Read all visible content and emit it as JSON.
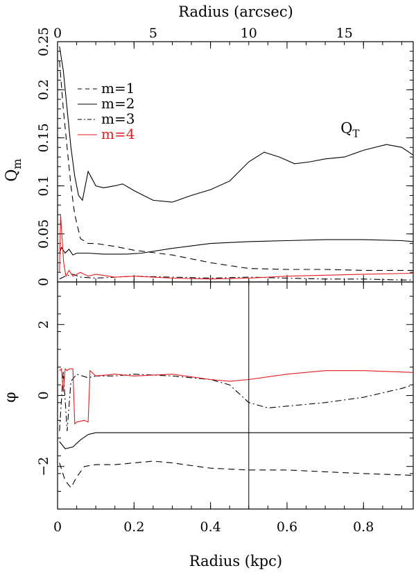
{
  "chart_data": [
    {
      "id": "top",
      "type": "line",
      "title": "",
      "xlabel": "Radius (kpc)",
      "x2label": "Radius (arcsec)",
      "ylabel_main": "Q",
      "ylabel_sub": "m",
      "xlim": [
        0,
        0.93
      ],
      "ylim": [
        0,
        0.25
      ],
      "x_ticks": [
        "0",
        "0.2",
        "0.4",
        "0.6",
        "0.8"
      ],
      "x_tick_values": [
        0,
        0.2,
        0.4,
        0.6,
        0.8
      ],
      "x2_ticks": [
        "0",
        "5",
        "10",
        "15"
      ],
      "x2_tick_values": [
        0,
        5,
        10,
        15
      ],
      "x2_lim": [
        0,
        18.6
      ],
      "y_ticks": [
        "0",
        "0.05",
        "0.1",
        "0.15",
        "0.2",
        "0.25"
      ],
      "y_tick_values": [
        0,
        0.05,
        0.1,
        0.15,
        0.2,
        0.25
      ],
      "annotation": {
        "main": "Q",
        "sub": "T",
        "x": 0.74,
        "y": 0.155
      },
      "legend": {
        "position": "top-left",
        "entries": [
          {
            "label": "m=1",
            "dash": "dash",
            "color": "#000000"
          },
          {
            "label": "m=2",
            "dash": "solid",
            "color": "#000000"
          },
          {
            "label": "m=3",
            "dash": "dashdot",
            "color": "#000000"
          },
          {
            "label": "m=4",
            "dash": "solid",
            "color": "#e41a1c"
          }
        ]
      },
      "series": [
        {
          "key": "QT",
          "dash": "solid",
          "color": "#000000",
          "x": [
            0.005,
            0.015,
            0.025,
            0.035,
            0.045,
            0.055,
            0.065,
            0.08,
            0.1,
            0.12,
            0.15,
            0.17,
            0.2,
            0.25,
            0.3,
            0.35,
            0.4,
            0.45,
            0.5,
            0.54,
            0.58,
            0.62,
            0.66,
            0.7,
            0.75,
            0.8,
            0.86,
            0.9,
            0.93
          ],
          "y": [
            0.245,
            0.22,
            0.18,
            0.14,
            0.11,
            0.09,
            0.085,
            0.115,
            0.1,
            0.098,
            0.1,
            0.102,
            0.095,
            0.085,
            0.083,
            0.09,
            0.096,
            0.105,
            0.125,
            0.135,
            0.13,
            0.123,
            0.125,
            0.128,
            0.13,
            0.137,
            0.143,
            0.14,
            0.132
          ]
        },
        {
          "key": "m1",
          "dash": "dash",
          "color": "#000000",
          "x": [
            0.005,
            0.015,
            0.025,
            0.035,
            0.045,
            0.06,
            0.08,
            0.1,
            0.15,
            0.2,
            0.3,
            0.4,
            0.5,
            0.6,
            0.7,
            0.8,
            0.93
          ],
          "y": [
            0.23,
            0.18,
            0.14,
            0.1,
            0.07,
            0.045,
            0.04,
            0.04,
            0.037,
            0.033,
            0.028,
            0.02,
            0.014,
            0.013,
            0.013,
            0.012,
            0.012
          ]
        },
        {
          "key": "m2",
          "dash": "solid",
          "color": "#000000",
          "x": [
            0.005,
            0.01,
            0.02,
            0.03,
            0.04,
            0.05,
            0.08,
            0.12,
            0.18,
            0.22,
            0.3,
            0.4,
            0.5,
            0.6,
            0.7,
            0.8,
            0.9,
            0.93
          ],
          "y": [
            0.03,
            0.036,
            0.03,
            0.034,
            0.028,
            0.03,
            0.03,
            0.029,
            0.029,
            0.03,
            0.035,
            0.04,
            0.042,
            0.043,
            0.044,
            0.044,
            0.043,
            0.042
          ]
        },
        {
          "key": "m3",
          "dash": "dashdot",
          "color": "#000000",
          "x": [
            0.005,
            0.02,
            0.04,
            0.06,
            0.1,
            0.2,
            0.3,
            0.4,
            0.5,
            0.6,
            0.7,
            0.8,
            0.9,
            0.93
          ],
          "y": [
            0.003,
            0.006,
            0.008,
            0.005,
            0.004,
            0.006,
            0.005,
            0.004,
            0.005,
            0.004,
            0.003,
            0.003,
            0.002,
            0.002
          ]
        },
        {
          "key": "m4",
          "dash": "solid",
          "color": "#e41a1c",
          "x": [
            0.005,
            0.008,
            0.012,
            0.016,
            0.022,
            0.03,
            0.04,
            0.06,
            0.08,
            0.1,
            0.15,
            0.2,
            0.3,
            0.4,
            0.5,
            0.6,
            0.7,
            0.8,
            0.93
          ],
          "y": [
            0.01,
            0.07,
            0.045,
            0.02,
            0.006,
            0.012,
            0.006,
            0.01,
            0.006,
            0.008,
            0.005,
            0.006,
            0.004,
            0.003,
            0.004,
            0.006,
            0.007,
            0.008,
            0.009
          ]
        }
      ]
    },
    {
      "id": "bottom",
      "type": "line",
      "title": "",
      "xlabel": "Radius (kpc)",
      "ylabel": "φ",
      "xlim": [
        0,
        0.93
      ],
      "ylim": [
        -3.2,
        3.2
      ],
      "x_ticks": [
        "0",
        "0.2",
        "0.4",
        "0.6",
        "0.8"
      ],
      "x_tick_values": [
        0,
        0.2,
        0.4,
        0.6,
        0.8
      ],
      "y_ticks": [
        "−2",
        "0",
        "2"
      ],
      "y_tick_values": [
        -2,
        0,
        2
      ],
      "vline_x": 0.5,
      "series": [
        {
          "key": "m1",
          "dash": "dash",
          "color": "#000000",
          "x": [
            0.005,
            0.02,
            0.035,
            0.05,
            0.07,
            0.1,
            0.15,
            0.2,
            0.25,
            0.3,
            0.4,
            0.5,
            0.6,
            0.7,
            0.8,
            0.93
          ],
          "y": [
            -1.9,
            -2.4,
            -2.6,
            -2.3,
            -2.0,
            -1.95,
            -1.95,
            -1.9,
            -1.85,
            -1.9,
            -2.05,
            -2.1,
            -2.1,
            -2.15,
            -2.2,
            -2.25
          ]
        },
        {
          "key": "m2",
          "dash": "solid",
          "color": "#000000",
          "x": [
            0.005,
            0.02,
            0.04,
            0.06,
            0.08,
            0.1,
            0.15,
            0.2,
            0.3,
            0.4,
            0.5,
            0.6,
            0.7,
            0.8,
            0.93
          ],
          "y": [
            -1.3,
            -1.5,
            -1.45,
            -1.25,
            -1.1,
            -1.05,
            -1.05,
            -1.05,
            -1.05,
            -1.05,
            -1.05,
            -1.05,
            -1.05,
            -1.05,
            -1.05
          ]
        },
        {
          "key": "m3",
          "dash": "dashdot",
          "color": "#000000",
          "x": [
            0.005,
            0.015,
            0.025,
            0.035,
            0.05,
            0.08,
            0.1,
            0.15,
            0.2,
            0.3,
            0.4,
            0.45,
            0.5,
            0.55,
            0.6,
            0.7,
            0.8,
            0.9,
            0.93
          ],
          "y": [
            -1.0,
            0.7,
            -1.0,
            0.4,
            0.6,
            0.5,
            0.55,
            0.55,
            0.6,
            0.55,
            0.45,
            0.3,
            -0.2,
            -0.35,
            -0.3,
            -0.2,
            -0.05,
            0.2,
            0.3
          ]
        },
        {
          "key": "m4",
          "dash": "solid",
          "color": "#e41a1c",
          "x": [
            0.005,
            0.01,
            0.015,
            0.02,
            0.025,
            0.03,
            0.04,
            0.045,
            0.05,
            0.07,
            0.08,
            0.085,
            0.1,
            0.15,
            0.2,
            0.3,
            0.4,
            0.45,
            0.5,
            0.6,
            0.7,
            0.8,
            0.93
          ],
          "y": [
            0.7,
            0.75,
            0.1,
            0.75,
            0.7,
            0.75,
            0.75,
            -0.8,
            -0.75,
            -0.7,
            -0.75,
            0.7,
            0.55,
            0.6,
            0.55,
            0.6,
            0.45,
            0.4,
            0.45,
            0.6,
            0.7,
            0.7,
            0.65
          ]
        }
      ]
    }
  ]
}
